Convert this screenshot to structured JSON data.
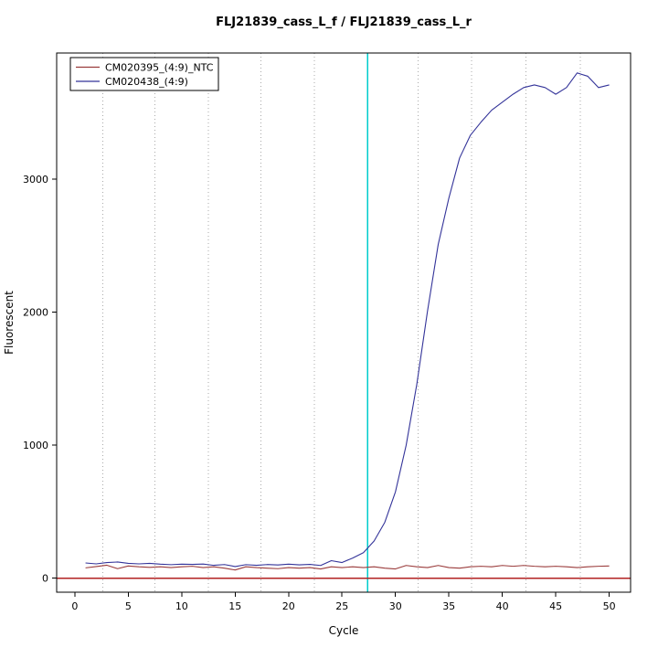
{
  "chart_data": {
    "type": "line",
    "title": "FLJ21839_cass_L_f / FLJ21839_cass_L_r",
    "xlabel": "Cycle",
    "ylabel": "Fluorescent",
    "xlim": [
      -1.7,
      52.0
    ],
    "ylim": [
      -105,
      3950
    ],
    "xticks": [
      0,
      5,
      10,
      15,
      20,
      25,
      30,
      35,
      40,
      45,
      50
    ],
    "yticks": [
      0,
      1000,
      2000,
      3000
    ],
    "grid_x": [
      2.6,
      7.5,
      12.5,
      17.4,
      22.4,
      32.1,
      37.1,
      42.2,
      47.3
    ],
    "grid_color": "#AAAAAA",
    "ct_line": {
      "x": 27.4,
      "color": "#00CCCC"
    },
    "zero_line": {
      "y": 0,
      "color": "#B22222"
    },
    "legend_position": "top-left",
    "x": [
      1,
      2,
      3,
      4,
      5,
      6,
      7,
      8,
      9,
      10,
      11,
      12,
      13,
      14,
      15,
      16,
      17,
      18,
      19,
      20,
      21,
      22,
      23,
      24,
      25,
      26,
      27,
      28,
      29,
      30,
      31,
      32,
      33,
      34,
      35,
      36,
      37,
      38,
      39,
      40,
      41,
      42,
      43,
      44,
      45,
      46,
      47,
      48,
      49,
      50
    ],
    "series": [
      {
        "name": "CM020395_(4:9)_NTC",
        "color": "#9A3B3B",
        "values": [
          78,
          88,
          98,
          72,
          92,
          86,
          82,
          86,
          80,
          86,
          90,
          80,
          86,
          76,
          62,
          86,
          80,
          76,
          72,
          80,
          76,
          80,
          70,
          86,
          80,
          86,
          80,
          86,
          76,
          70,
          96,
          86,
          80,
          96,
          80,
          76,
          86,
          90,
          86,
          96,
          90,
          96,
          90,
          86,
          90,
          86,
          80,
          86,
          90,
          92
        ]
      },
      {
        "name": "CM020438_(4:9)",
        "color": "#333399",
        "values": [
          115,
          108,
          118,
          122,
          112,
          108,
          112,
          106,
          102,
          106,
          104,
          107,
          97,
          103,
          88,
          102,
          97,
          103,
          100,
          106,
          101,
          104,
          96,
          132,
          118,
          152,
          192,
          280,
          420,
          650,
          1000,
          1460,
          2010,
          2510,
          2860,
          3160,
          3330,
          3430,
          3520,
          3580,
          3640,
          3690,
          3710,
          3690,
          3640,
          3690,
          3800,
          3775,
          3690,
          3710
        ]
      }
    ]
  }
}
